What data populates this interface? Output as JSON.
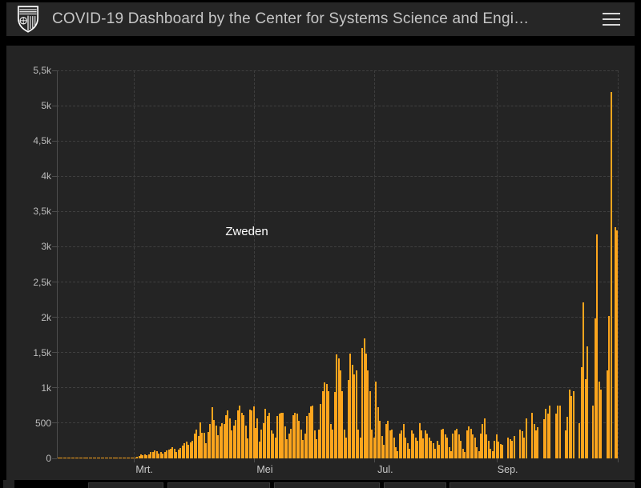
{
  "header": {
    "title": "COVID-19 Dashboard by the Center for Systems Science and Engi…",
    "logo_icon": "jhu-shield-logo",
    "menu_icon": "hamburger-menu-icon"
  },
  "colors": {
    "page_bg": "#000000",
    "header_bg": "#262626",
    "panel_bg": "#242424",
    "bar": "#FCA51D",
    "gridline": "#3f3f3f",
    "axis": "#4d4d4d",
    "tick_label": "#bcbcbc",
    "month_label": "#c9c9c9",
    "title_text": "#c6c6c6",
    "series_label_text": "#ffffff"
  },
  "chart_data": {
    "type": "bar",
    "title": "",
    "series_label": "Zweden",
    "xlabel": "",
    "ylabel": "",
    "start_date": "2020-01-22",
    "x_tick_labels": [
      "Mrt.",
      "Mei",
      "Jul.",
      "Sep."
    ],
    "y_tick_labels": [
      "0",
      "500",
      "1k",
      "1,5k",
      "2k",
      "2,5k",
      "3k",
      "3,5k",
      "4k",
      "4,5k",
      "5k",
      "5,5k"
    ],
    "ylim": [
      0,
      5500
    ],
    "grid": "dashed",
    "legend_position": "none",
    "values": [
      1,
      1,
      1,
      1,
      1,
      1,
      1,
      1,
      1,
      1,
      1,
      1,
      1,
      1,
      1,
      1,
      1,
      1,
      1,
      1,
      1,
      1,
      1,
      1,
      1,
      1,
      1,
      1,
      1,
      1,
      1,
      1,
      1,
      1,
      2,
      2,
      3,
      5,
      7,
      12,
      21,
      30,
      52,
      41,
      61,
      46,
      58,
      87,
      96,
      111,
      100,
      73,
      96,
      64,
      94,
      115,
      122,
      138,
      160,
      134,
      92,
      123,
      149,
      181,
      213,
      240,
      196,
      227,
      253,
      355,
      407,
      312,
      512,
      365,
      363,
      218,
      376,
      487,
      722,
      544,
      466,
      332,
      456,
      497,
      482,
      613,
      676,
      563,
      392,
      463,
      545,
      682,
      751,
      642,
      610,
      463,
      286,
      695,
      681,
      732,
      428,
      562,
      235,
      404,
      495,
      702,
      605,
      642,
      401,
      348,
      292,
      602,
      637,
      649,
      646,
      455,
      273,
      347,
      422,
      618,
      648,
      637,
      538,
      405,
      261,
      348,
      597,
      648,
      736,
      749,
      401,
      272,
      403,
      774,
      947,
      1080,
      1056,
      948,
      483,
      403,
      942,
      1474,
      1412,
      1247,
      948,
      404,
      294,
      1110,
      1487,
      1323,
      1192,
      1247,
      403,
      294,
      1570,
      1698,
      1481,
      1247,
      948,
      403,
      294,
      1093,
      722,
      529,
      322,
      193,
      482,
      538,
      398,
      411,
      296,
      164,
      103,
      351,
      398,
      487,
      296,
      214,
      136,
      398,
      351,
      296,
      251,
      495,
      398,
      286,
      398,
      351,
      296,
      251,
      214,
      136,
      253,
      198,
      409,
      425,
      342,
      296,
      164,
      103,
      357,
      398,
      425,
      342,
      251,
      136,
      86,
      398,
      459,
      425,
      342,
      296,
      164,
      103,
      357,
      482,
      565,
      342,
      251,
      136,
      103,
      253,
      342,
      242,
      201,
      193,
      0,
      0,
      298,
      272,
      245,
      312,
      0,
      0,
      413,
      389,
      292,
      565,
      0,
      0,
      652,
      493,
      392,
      438,
      0,
      0,
      551,
      702,
      639,
      752,
      0,
      0,
      633,
      744,
      752,
      0,
      0,
      398,
      592,
      972,
      885,
      950,
      0,
      0,
      498,
      1290,
      2215,
      1120,
      1590,
      0,
      0,
      752,
      1980,
      3178,
      1090,
      980,
      0,
      0,
      1245,
      2020,
      5190,
      0,
      3280,
      3230
    ]
  }
}
